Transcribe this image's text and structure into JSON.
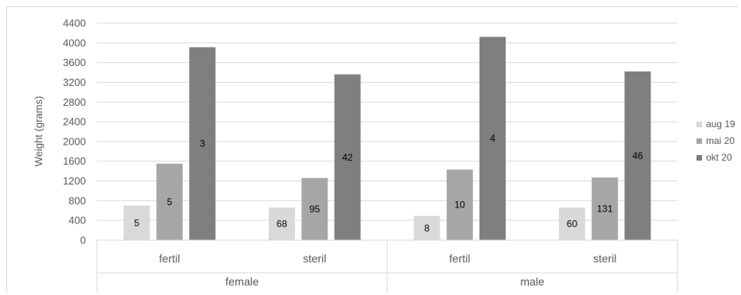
{
  "chart_data": {
    "type": "bar",
    "ylabel": "Weight (grams)",
    "ylim": [
      0,
      4400
    ],
    "ystep": 400,
    "yticks": [
      "0",
      "400",
      "800",
      "1200",
      "1600",
      "2000",
      "2400",
      "2800",
      "3200",
      "3600",
      "4000",
      "4400"
    ],
    "grid": true,
    "legend_position": "right",
    "groups": [
      {
        "label": "female",
        "categories": [
          "fertil",
          "steril"
        ]
      },
      {
        "label": "male",
        "categories": [
          "fertil",
          "steril"
        ]
      }
    ],
    "categories": [
      "fertil",
      "steril",
      "fertil",
      "steril"
    ],
    "series": [
      {
        "name": "aug 19",
        "color": "#d9d9d9",
        "values": [
          700,
          660,
          490,
          660
        ],
        "labels": [
          "5",
          "68",
          "8",
          "60"
        ]
      },
      {
        "name": "mai 20",
        "color": "#a6a6a6",
        "values": [
          1550,
          1260,
          1430,
          1270
        ],
        "labels": [
          "5",
          "95",
          "10",
          "131"
        ]
      },
      {
        "name": "okt 20",
        "color": "#7f7f7f",
        "values": [
          3910,
          3360,
          4120,
          3420
        ],
        "labels": [
          "3",
          "42",
          "4",
          "46"
        ]
      }
    ]
  }
}
